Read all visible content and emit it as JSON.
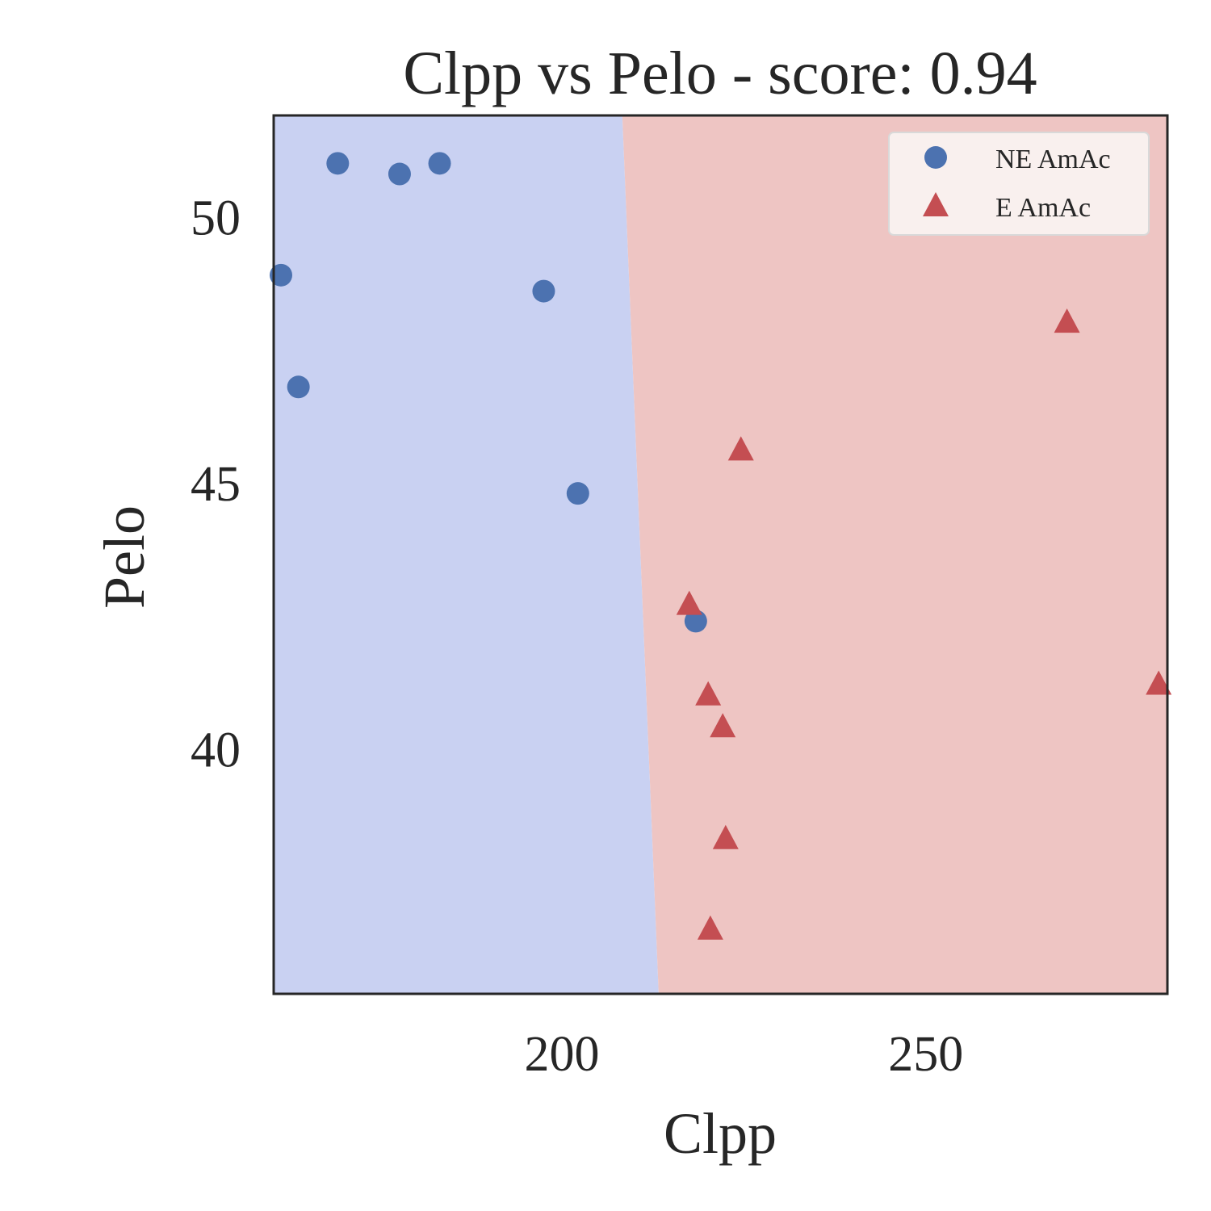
{
  "chart_data": {
    "type": "scatter",
    "title": "Clpp vs Pelo - score: 0.94",
    "xlabel": "Clpp",
    "ylabel": "Pelo",
    "xlim": [
      160.4,
      283.2
    ],
    "ylim": [
      35.4,
      51.9
    ],
    "xticks": [
      "200",
      "250"
    ],
    "xtick_values": [
      200,
      250
    ],
    "yticks": [
      "40",
      "45",
      "50"
    ],
    "ytick_values": [
      40,
      45,
      50
    ],
    "grid": false,
    "legend_position": "top-right",
    "colors": {
      "region_ne": "#c9d1f2",
      "region_e": "#eec5c3",
      "series_ne": "#4c72b0",
      "series_e": "#c44e52",
      "axis": "#262626"
    },
    "decision_boundary": {
      "top": {
        "x": 208.3,
        "y": 51.9
      },
      "bottom": {
        "x": 213.3,
        "y": 35.4
      }
    },
    "series": [
      {
        "name": "NE AmAc",
        "marker": "circle",
        "points": [
          {
            "x": 161.4,
            "y": 48.9
          },
          {
            "x": 163.8,
            "y": 46.8
          },
          {
            "x": 169.2,
            "y": 51.0
          },
          {
            "x": 177.7,
            "y": 50.8
          },
          {
            "x": 183.2,
            "y": 51.0
          },
          {
            "x": 197.5,
            "y": 48.6
          },
          {
            "x": 202.2,
            "y": 44.8
          },
          {
            "x": 218.4,
            "y": 42.4
          }
        ]
      },
      {
        "name": "E AmAc",
        "marker": "triangle",
        "points": [
          {
            "x": 217.5,
            "y": 42.7
          },
          {
            "x": 220.1,
            "y": 41.0
          },
          {
            "x": 222.1,
            "y": 40.4
          },
          {
            "x": 224.6,
            "y": 45.6
          },
          {
            "x": 222.5,
            "y": 38.3
          },
          {
            "x": 220.4,
            "y": 36.6
          },
          {
            "x": 269.4,
            "y": 48.0
          },
          {
            "x": 282.0,
            "y": 41.2
          }
        ]
      }
    ]
  }
}
